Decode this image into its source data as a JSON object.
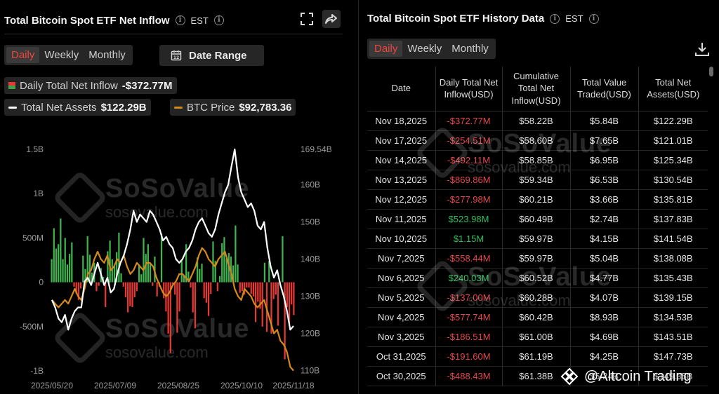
{
  "left_panel": {
    "title": "Total Bitcoin Spot ETF Net Inflow",
    "timezone": "EST",
    "period_tabs": [
      "Daily",
      "Weekly",
      "Monthly"
    ],
    "active_period": "Daily",
    "date_range_label": "Date Range",
    "stats": {
      "daily_inflow_label": "Daily Total Net Inflow",
      "daily_inflow_value": "-$372.77M",
      "net_assets_label": "Total Net Assets",
      "net_assets_value": "$122.29B",
      "btc_price_label": "BTC Price",
      "btc_price_value": "$92,783.36"
    },
    "watermark": {
      "brand": "SoSoValue",
      "domain": "sosovalue.com"
    }
  },
  "chart_data": {
    "type": "bar",
    "title": "",
    "xlabel": "",
    "ylabel": "",
    "x_tick_labels": [
      "2025/05/20",
      "2025/07/09",
      "2025/08/25",
      "2025/10/10",
      "2025/11/18"
    ],
    "left_axis": {
      "ticks": [
        "1.5B",
        "1B",
        "500M",
        "0",
        "-500M",
        "-1B"
      ],
      "tick_values": [
        1.5,
        1.0,
        0.5,
        0,
        -0.5,
        -1.0
      ],
      "ylim": [
        -1.0,
        1.5
      ],
      "unit": "USD billions"
    },
    "right_axis": {
      "ticks": [
        "169.54B",
        "160B",
        "150B",
        "140B",
        "130B",
        "120B",
        "110B"
      ],
      "tick_values": [
        169.54,
        160,
        150,
        140,
        130,
        120,
        110
      ],
      "ylim": [
        108,
        169.54
      ],
      "unit": "USD billions"
    },
    "grid": false,
    "colors": {
      "inflow_positive": "#3fb54f",
      "inflow_negative": "#e53935",
      "net_assets": "#ffffff",
      "btc_price": "#d4891b"
    },
    "series": [
      {
        "name": "Daily Total Net Inflow",
        "type": "bar",
        "axis": "left",
        "values": [
          0.26,
          0.61,
          0.38,
          0.43,
          0.72,
          0.26,
          0.5,
          0.2,
          0.32,
          0.45,
          -0.05,
          -0.13,
          -0.2,
          -0.07,
          0.3,
          0.15,
          0.52,
          0.31,
          0.11,
          0.22,
          -0.1,
          -0.04,
          0.16,
          0.06,
          -0.28,
          0.35,
          0.47,
          0.26,
          0.18,
          0.34,
          0.56,
          0.1,
          -0.05,
          -0.17,
          -0.34,
          -0.27,
          -0.28,
          -0.17,
          -0.1,
          0.2,
          0.09,
          0.5,
          0.32,
          0.43,
          0.22,
          -0.04,
          0.29,
          -0.16,
          -0.05,
          0.55,
          -0.18,
          -0.33,
          -0.58,
          -0.8,
          -0.02,
          -0.14,
          -0.57,
          -0.33,
          0.24,
          0.07,
          0.43,
          0.12,
          -0.06,
          -0.34,
          -0.52,
          0.28,
          0.15,
          0.21,
          -0.18,
          -0.23,
          -0.38,
          -0.13,
          0.46,
          0.24,
          -0.1,
          0.07,
          0.44,
          0.51,
          0.27,
          0.33,
          0.29,
          0.19,
          0.64,
          0.2,
          -0.12,
          -0.1,
          -0.14,
          -0.06,
          -0.06,
          -0.13,
          -0.16,
          -0.45,
          -0.22,
          -0.3,
          -0.5,
          0.22,
          -0.56,
          0.24,
          -0.58,
          -0.19,
          -0.14,
          -0.49,
          0.0,
          0.52,
          -0.87,
          -0.28,
          -0.49,
          -0.25,
          -0.37
        ]
      },
      {
        "name": "Total Net Assets",
        "type": "line",
        "axis": "right",
        "values": [
          129,
          127,
          124,
          123,
          125,
          121,
          124,
          126,
          127,
          127,
          134,
          135,
          133,
          136,
          139,
          136,
          133,
          135,
          131,
          132,
          136,
          139,
          141,
          144,
          148,
          153,
          150,
          152,
          151,
          150,
          153,
          152,
          150,
          148,
          145,
          146,
          144,
          143,
          140,
          139,
          140,
          142,
          143,
          145,
          148,
          150,
          151,
          149,
          147,
          146,
          148,
          152,
          155,
          158,
          160,
          165,
          169.54,
          162,
          158,
          156,
          154,
          155,
          153,
          149,
          148,
          150,
          143,
          138,
          135,
          137,
          133,
          130,
          126,
          121,
          122
        ]
      },
      {
        "name": "BTC Price",
        "type": "line",
        "axis": "right",
        "values": [
          129,
          128,
          127,
          128,
          129,
          128,
          130,
          132,
          130,
          129,
          132,
          136,
          137,
          140,
          142,
          140,
          139,
          141,
          137,
          138,
          140,
          139,
          141,
          138,
          136,
          137,
          139,
          138,
          137,
          139,
          139,
          138,
          135,
          133,
          131,
          130,
          131,
          133,
          134,
          136,
          136,
          135,
          134,
          136,
          138,
          141,
          143,
          142,
          140,
          139,
          138,
          140,
          141,
          142,
          139,
          136,
          132,
          130,
          129,
          132,
          131,
          130,
          128,
          127,
          128,
          129,
          126,
          123,
          120,
          121,
          118,
          117,
          115,
          111,
          110
        ]
      }
    ]
  },
  "right_panel": {
    "title": "Total Bitcoin Spot ETF History Data",
    "timezone": "EST",
    "period_tabs": [
      "Daily",
      "Weekly",
      "Monthly"
    ],
    "active_period": "Daily",
    "columns": [
      "Date",
      "Daily Total Net Inflow(USD)",
      "Cumulative Total Net Inflow(USD)",
      "Total Value Traded(USD)",
      "Total Net Assets(USD)"
    ],
    "rows": [
      [
        "Nov 18,2025",
        "-$372.77M",
        "$58.22B",
        "$5.84B",
        "$122.29B"
      ],
      [
        "Nov 17,2025",
        "-$254.51M",
        "$58.60B",
        "$7.65B",
        "$121.01B"
      ],
      [
        "Nov 14,2025",
        "-$492.11M",
        "$58.85B",
        "$6.95B",
        "$125.34B"
      ],
      [
        "Nov 13,2025",
        "-$869.86M",
        "$59.34B",
        "$6.53B",
        "$130.54B"
      ],
      [
        "Nov 12,2025",
        "-$277.98M",
        "$60.21B",
        "$3.66B",
        "$135.81B"
      ],
      [
        "Nov 11,2025",
        "$523.98M",
        "$60.49B",
        "$2.74B",
        "$137.83B"
      ],
      [
        "Nov 10,2025",
        "$1.15M",
        "$59.97B",
        "$4.15B",
        "$141.54B"
      ],
      [
        "Nov 7,2025",
        "-$558.44M",
        "$59.97B",
        "$5.04B",
        "$138.08B"
      ],
      [
        "Nov 6,2025",
        "$240.03M",
        "$60.52B",
        "$4.77B",
        "$135.43B"
      ],
      [
        "Nov 5,2025",
        "-$137.00M",
        "$60.28B",
        "$4.07B",
        "$139.15B"
      ],
      [
        "Nov 4,2025",
        "-$577.74M",
        "$60.42B",
        "$8.93B",
        "$134.53B"
      ],
      [
        "Nov 3,2025",
        "-$186.51M",
        "$61.00B",
        "$4.69B",
        "$143.51B"
      ],
      [
        "Oct 31,2025",
        "-$191.60M",
        "$61.19B",
        "$4.25B",
        "$147.73B"
      ],
      [
        "Oct 30,2025",
        "-$488.43M",
        "$61.38B",
        "$5.24B",
        "$149.35B"
      ]
    ],
    "watermark": {
      "brand": "SoSoValue",
      "domain": "sosovalue.com"
    }
  },
  "credit": {
    "text": "@Altcoin Trading"
  }
}
